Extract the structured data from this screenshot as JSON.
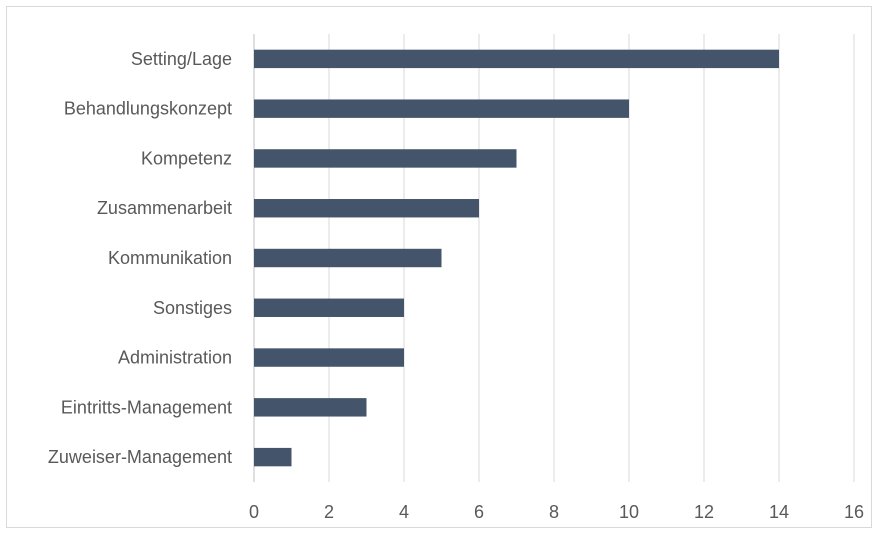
{
  "chart_data": {
    "type": "bar",
    "orientation": "horizontal",
    "title": "",
    "xlabel": "",
    "ylabel": "",
    "categories": [
      "Setting/Lage",
      "Behandlungskonzept",
      "Kompetenz",
      "Zusammenarbeit",
      "Kommunikation",
      "Sonstiges",
      "Administration",
      "Eintritts-Management",
      "Zuweiser-Management"
    ],
    "values": [
      14,
      10,
      7,
      6,
      5,
      4,
      4,
      3,
      1
    ],
    "xlim": [
      0,
      16
    ],
    "xticks": [
      "0",
      "2",
      "4",
      "6",
      "8",
      "10",
      "12",
      "14",
      "16"
    ],
    "grid": "vertical",
    "legend": "none",
    "bar_color": "#44546a"
  }
}
